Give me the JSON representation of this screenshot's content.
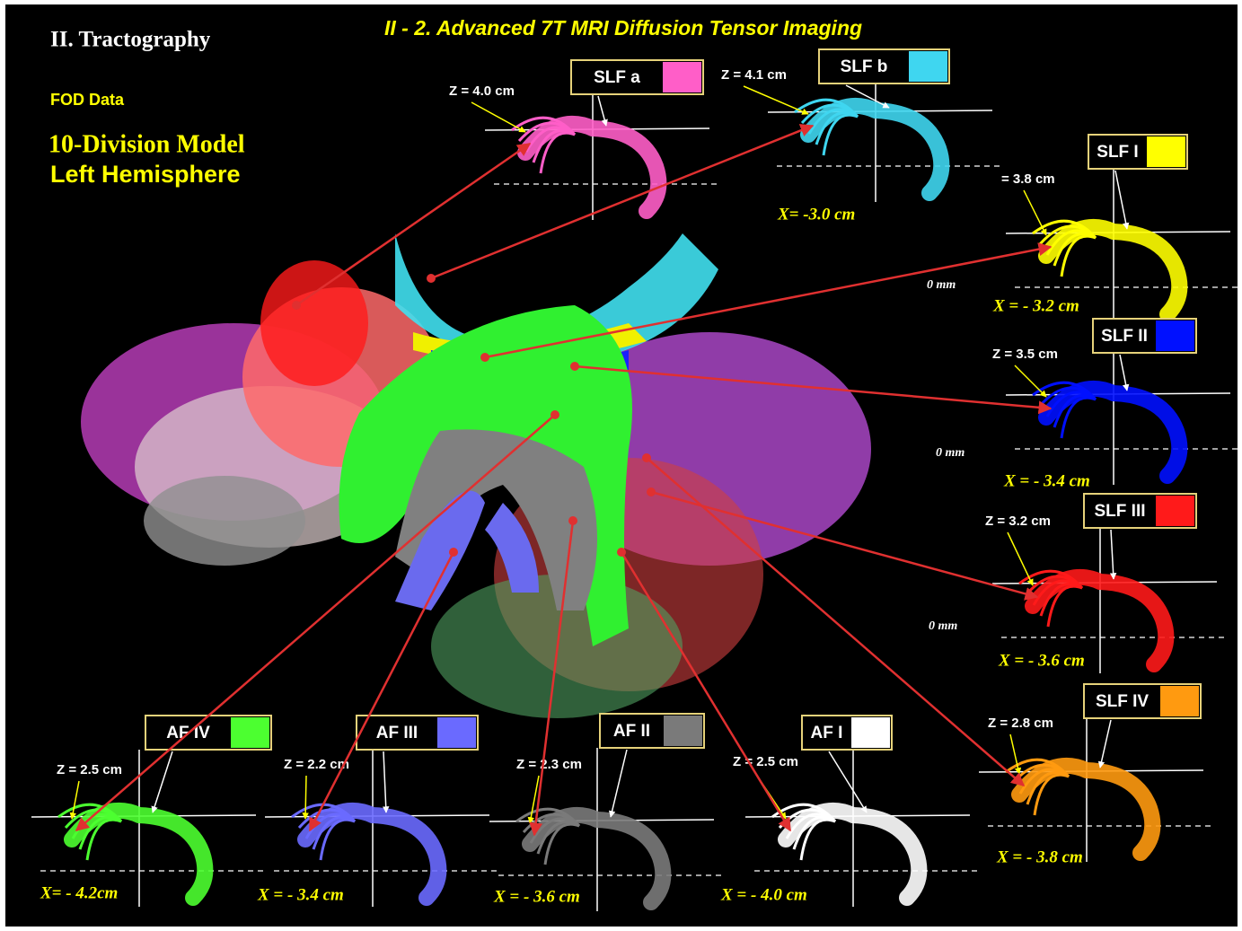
{
  "header": {
    "section": "II.   Tractography",
    "title": "II - 2.   Advanced 7T MRI Diffusion Tensor Imaging",
    "data_label": "FOD Data",
    "model": "10-Division Model",
    "hemisphere": "Left  Hemisphere"
  },
  "panels": [
    {
      "label": "SLF a",
      "color": "#ff5ec8",
      "z": "Z = 4.0 cm"
    },
    {
      "label": "SLF b",
      "color": "#3fd6f0",
      "z": "Z = 4.1 cm",
      "x": "X= -3.0 cm"
    },
    {
      "label": "SLF I",
      "color": "#ffff00",
      "z": "= 3.8 cm",
      "zero": "0 mm",
      "x": "X = - 3.2 cm"
    },
    {
      "label": "SLF II",
      "color": "#0010ff",
      "z": "Z = 3.5 cm",
      "zero": "0 mm",
      "x": "X = - 3.4 cm"
    },
    {
      "label": "SLF III",
      "color": "#ff1a1a",
      "z": "Z = 3.2 cm",
      "zero": "0 mm",
      "x": "X = - 3.6 cm"
    },
    {
      "label": "SLF IV",
      "color": "#ff9a10",
      "z": "Z = 2.8 cm",
      "x": "X = - 3.8 cm"
    },
    {
      "label": "AF IV",
      "color": "#4cff30",
      "z": "Z = 2.5 cm",
      "x": "X= - 4.2cm"
    },
    {
      "label": "AF III",
      "color": "#6a6aff",
      "z": "Z = 2.2 cm",
      "x": "X = - 3.4 cm"
    },
    {
      "label": "AF II",
      "color": "#7a7a7a",
      "z": "Z = 2.3 cm",
      "x": "X = - 3.6 cm"
    },
    {
      "label": "AF I",
      "color": "#ffffff",
      "z": "Z = 2.5 cm",
      "x": "X = - 4.0 cm"
    }
  ]
}
